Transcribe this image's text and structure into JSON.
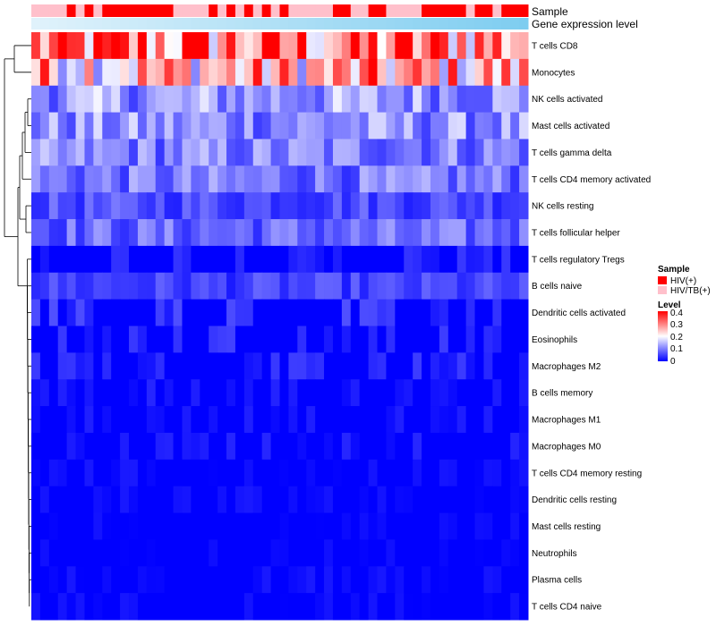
{
  "chart_data": {
    "type": "heatmap",
    "title": "",
    "annotations": [
      {
        "name": "Sample",
        "colors": {
          "HIV(+)": "#ff0000",
          "HIV/TB(+)": "#ffc0cb"
        }
      },
      {
        "name": "Gene expression level",
        "color_low": "#e0f2fb",
        "color_high": "#7ecdf0"
      }
    ],
    "sample_groups": [
      "HIV/TB(+)",
      "HIV/TB(+)",
      "HIV/TB(+)",
      "HIV/TB(+)",
      "HIV(+)",
      "HIV/TB(+)",
      "HIV(+)",
      "HIV/TB(+)",
      "HIV(+)",
      "HIV(+)",
      "HIV(+)",
      "HIV(+)",
      "HIV(+)",
      "HIV(+)",
      "HIV(+)",
      "HIV(+)",
      "HIV/TB(+)",
      "HIV/TB(+)",
      "HIV/TB(+)",
      "HIV/TB(+)",
      "HIV(+)",
      "HIV/TB(+)",
      "HIV(+)",
      "HIV/TB(+)",
      "HIV(+)",
      "HIV/TB(+)",
      "HIV(+)",
      "HIV/TB(+)",
      "HIV(+)",
      "HIV/TB(+)",
      "HIV/TB(+)",
      "HIV/TB(+)",
      "HIV/TB(+)",
      "HIV/TB(+)",
      "HIV(+)",
      "HIV(+)",
      "HIV/TB(+)",
      "HIV/TB(+)",
      "HIV(+)",
      "HIV(+)",
      "HIV/TB(+)",
      "HIV/TB(+)",
      "HIV/TB(+)",
      "HIV/TB(+)",
      "HIV(+)",
      "HIV(+)",
      "HIV(+)",
      "HIV(+)",
      "HIV(+)",
      "HIV/TB(+)",
      "HIV(+)",
      "HIV(+)",
      "HIV/TB(+)",
      "HIV(+)",
      "HIV(+)",
      "HIV(+)"
    ],
    "row_labels": [
      "T cells CD8",
      "Monocytes",
      "NK cells activated",
      "Mast cells activated",
      "T cells gamma delta",
      "T cells CD4 memory activated",
      "NK cells resting",
      "T cells follicular helper",
      "T cells regulatory  Tregs",
      "B cells naive",
      "Dendritic cells activated",
      "Eosinophils",
      "Macrophages M2",
      "B cells memory",
      "Macrophages M1",
      "Macrophages M0",
      "T cells CD4 memory resting",
      "Dendritic cells resting",
      "Mast cells resting",
      "Neutrophils",
      "Plasma cells",
      "T cells CD4 naive"
    ],
    "row_means": [
      0.3,
      0.25,
      0.12,
      0.11,
      0.1,
      0.09,
      0.06,
      0.08,
      0.03,
      0.05,
      0.04,
      0.04,
      0.03,
      0.02,
      0.015,
      0.02,
      0.01,
      0.01,
      0.005,
      0.003,
      0.01,
      0.008
    ],
    "color_scale": {
      "low": "#0000ff",
      "mid": "#ffffff",
      "high": "#ff0000",
      "midpoint": 0.2,
      "max": 0.4
    },
    "legend": {
      "sample_title": "Sample",
      "sample_entries": [
        {
          "label": "HIV(+)",
          "color": "#ff0000"
        },
        {
          "label": "HIV/TB(+)",
          "color": "#ffc0cb"
        }
      ],
      "level_title": "Level",
      "level_ticks": [
        "0.4",
        "0.3",
        "0.2",
        "0.1",
        "0"
      ]
    }
  }
}
